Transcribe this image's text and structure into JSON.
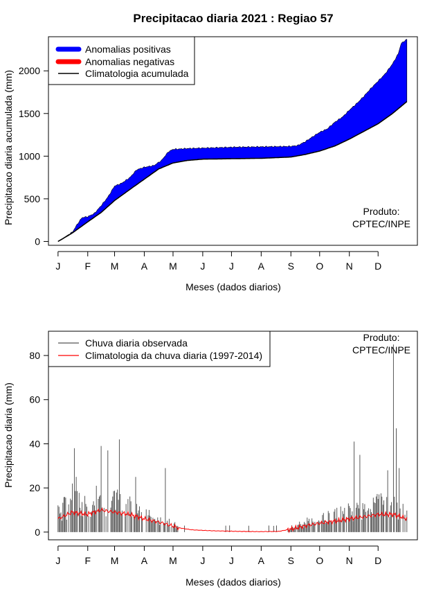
{
  "title": "Precipitacao diaria 2021 : Regiao 57",
  "chart_data": [
    {
      "type": "area",
      "ylabel": "Precipitacao diaria acumulada (mm)",
      "xlabel": "Meses (dados diarios)",
      "ylim": [
        -45,
        2400
      ],
      "xlim": [
        -10,
        375
      ],
      "x_ticks": [
        {
          "day": 0,
          "label": "J"
        },
        {
          "day": 31,
          "label": "F"
        },
        {
          "day": 59,
          "label": "M"
        },
        {
          "day": 90,
          "label": "A"
        },
        {
          "day": 120,
          "label": "M"
        },
        {
          "day": 151,
          "label": "J"
        },
        {
          "day": 181,
          "label": "J"
        },
        {
          "day": 212,
          "label": "A"
        },
        {
          "day": 243,
          "label": "S"
        },
        {
          "day": 273,
          "label": "O"
        },
        {
          "day": 304,
          "label": "N"
        },
        {
          "day": 334,
          "label": "D"
        }
      ],
      "y_ticks": [
        0,
        500,
        1000,
        1500,
        2000
      ],
      "legend": [
        {
          "label": "Anomalias positivas",
          "color": "#0000ff"
        },
        {
          "label": "Anomalias negativas",
          "color": "#ff0000"
        },
        {
          "label": "Climatologia acumulada",
          "color": "#000000"
        }
      ],
      "legend_position": "top-left",
      "annotation": [
        "Produto:",
        "CPTEC/INPE"
      ],
      "climatology_points": [
        [
          0,
          0
        ],
        [
          15,
          100
        ],
        [
          31,
          230
        ],
        [
          45,
          340
        ],
        [
          59,
          480
        ],
        [
          75,
          610
        ],
        [
          90,
          730
        ],
        [
          105,
          850
        ],
        [
          120,
          920
        ],
        [
          135,
          950
        ],
        [
          151,
          965
        ],
        [
          181,
          970
        ],
        [
          212,
          975
        ],
        [
          243,
          990
        ],
        [
          258,
          1020
        ],
        [
          273,
          1060
        ],
        [
          289,
          1120
        ],
        [
          304,
          1200
        ],
        [
          319,
          1290
        ],
        [
          334,
          1380
        ],
        [
          349,
          1500
        ],
        [
          364,
          1640
        ]
      ],
      "observed_points": [
        [
          0,
          0
        ],
        [
          15,
          110
        ],
        [
          20,
          200
        ],
        [
          25,
          280
        ],
        [
          31,
          290
        ],
        [
          38,
          330
        ],
        [
          45,
          420
        ],
        [
          52,
          520
        ],
        [
          59,
          650
        ],
        [
          66,
          680
        ],
        [
          75,
          750
        ],
        [
          82,
          840
        ],
        [
          90,
          870
        ],
        [
          100,
          890
        ],
        [
          108,
          950
        ],
        [
          115,
          1050
        ],
        [
          120,
          1080
        ],
        [
          135,
          1090
        ],
        [
          151,
          1095
        ],
        [
          181,
          1105
        ],
        [
          212,
          1110
        ],
        [
          243,
          1115
        ],
        [
          250,
          1125
        ],
        [
          258,
          1170
        ],
        [
          266,
          1230
        ],
        [
          273,
          1280
        ],
        [
          281,
          1320
        ],
        [
          289,
          1400
        ],
        [
          297,
          1460
        ],
        [
          304,
          1540
        ],
        [
          312,
          1620
        ],
        [
          319,
          1700
        ],
        [
          327,
          1800
        ],
        [
          334,
          1880
        ],
        [
          341,
          1960
        ],
        [
          349,
          2080
        ],
        [
          355,
          2200
        ],
        [
          358,
          2320
        ],
        [
          364,
          2370
        ]
      ]
    },
    {
      "type": "bar",
      "ylabel": "Precipitacao diaria (mm)",
      "xlabel": "Meses (dados diarios)",
      "ylim": [
        -3.5,
        91
      ],
      "xlim": [
        -10,
        375
      ],
      "y_ticks": [
        0,
        20,
        40,
        60,
        80
      ],
      "legend": [
        {
          "label": "Chuva diaria observada",
          "color": "#555555"
        },
        {
          "label": "Climatologia da chuva diaria (1997-2014)",
          "color": "#ff0000"
        }
      ],
      "legend_position": "top-left",
      "annotation": [
        "Produto:",
        "CPTEC/INPE"
      ],
      "observed_peaks": [
        [
          15,
          22
        ],
        [
          17,
          38
        ],
        [
          19,
          25
        ],
        [
          40,
          21
        ],
        [
          45,
          39
        ],
        [
          52,
          37
        ],
        [
          64,
          42
        ],
        [
          81,
          25
        ],
        [
          112,
          29
        ],
        [
          309,
          41
        ],
        [
          315,
          35
        ],
        [
          344,
          28
        ],
        [
          350,
          85
        ],
        [
          353,
          47
        ],
        [
          356,
          29
        ]
      ],
      "climatology_points": [
        [
          0,
          6
        ],
        [
          15,
          9
        ],
        [
          30,
          8
        ],
        [
          45,
          10
        ],
        [
          59,
          9
        ],
        [
          75,
          8
        ],
        [
          90,
          6
        ],
        [
          110,
          4
        ],
        [
          125,
          2
        ],
        [
          140,
          1
        ],
        [
          160,
          0.6
        ],
        [
          190,
          0.3
        ],
        [
          210,
          0.2
        ],
        [
          230,
          0.3
        ],
        [
          245,
          1.5
        ],
        [
          260,
          3
        ],
        [
          273,
          4
        ],
        [
          290,
          5
        ],
        [
          304,
          6
        ],
        [
          320,
          7
        ],
        [
          334,
          8
        ],
        [
          350,
          8
        ],
        [
          364,
          6
        ]
      ]
    }
  ]
}
